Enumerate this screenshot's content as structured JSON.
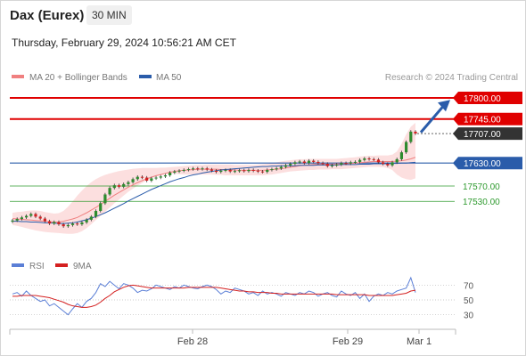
{
  "header": {
    "instrument": "Dax (Eurex)",
    "timeframe": "30 MIN",
    "datetime": "Thursday, February 29, 2024 10:56:21 AM CET"
  },
  "legend": {
    "ma20": "MA 20 + Bollinger Bands",
    "ma50": "MA 50",
    "credit": "Research © 2024 Trading Central",
    "rsi": "RSI",
    "ma9": "9MA"
  },
  "colors": {
    "resistance": "#e00000",
    "support_line": "#2a5caa",
    "support_minor": "#2e9a2e",
    "ma20": "#f08080",
    "ma50": "#2a5caa",
    "bollinger": "#fbd7d7",
    "bull": "#2e8b2e",
    "bear": "#d42020",
    "arrow": "#2a5caa"
  },
  "chart_data": {
    "type": "candlestick",
    "price_range": [
      17405,
      17835
    ],
    "levels": [
      {
        "value": 17800.0,
        "label": "17800.00",
        "kind": "resistance"
      },
      {
        "value": 17745.0,
        "label": "17745.00",
        "kind": "resistance"
      },
      {
        "value": 17707.0,
        "label": "17707.00",
        "kind": "current"
      },
      {
        "value": 17630.0,
        "label": "17630.00",
        "kind": "support"
      },
      {
        "value": 17570.0,
        "label": "17570.00",
        "kind": "support-minor"
      },
      {
        "value": 17530.0,
        "label": "17530.00",
        "kind": "support-minor"
      }
    ],
    "x_ticks": [
      "Feb 28",
      "Feb 29",
      "Mar 1"
    ],
    "close": [
      17480,
      17484,
      17488,
      17492,
      17497,
      17490,
      17485,
      17478,
      17472,
      17476,
      17470,
      17465,
      17468,
      17472,
      17470,
      17475,
      17482,
      17490,
      17505,
      17525,
      17548,
      17565,
      17572,
      17568,
      17575,
      17580,
      17588,
      17594,
      17592,
      17584,
      17590,
      17592,
      17595,
      17598,
      17605,
      17608,
      17610,
      17612,
      17614,
      17616,
      17614,
      17616,
      17613,
      17610,
      17607,
      17610,
      17612,
      17608,
      17609,
      17611,
      17609,
      17612,
      17610,
      17608,
      17607,
      17612,
      17614,
      17616,
      17620,
      17624,
      17628,
      17632,
      17634,
      17630,
      17636,
      17633,
      17630,
      17628,
      17622,
      17624,
      17626,
      17630,
      17629,
      17632,
      17633,
      17638,
      17642,
      17640,
      17639,
      17632,
      17628,
      17624,
      17632,
      17640,
      17658,
      17685,
      17712,
      17707
    ],
    "ma20": [
      17485,
      17484,
      17483,
      17482,
      17481,
      17480,
      17479,
      17478,
      17477,
      17476,
      17476,
      17478,
      17481,
      17484,
      17488,
      17494,
      17500,
      17507,
      17514,
      17522,
      17530,
      17538,
      17546,
      17553,
      17560,
      17567,
      17573,
      17579,
      17584,
      17589,
      17593,
      17597,
      17600,
      17603,
      17606,
      17608,
      17610,
      17611,
      17612,
      17613,
      17614,
      17614,
      17614,
      17614,
      17614,
      17613,
      17613,
      17612,
      17612,
      17611,
      17611,
      17611,
      17611,
      17611,
      17611,
      17612,
      17613,
      17614,
      17615,
      17617,
      17619,
      17621,
      17623,
      17624,
      17625,
      17626,
      17627,
      17627,
      17627,
      17627,
      17628,
      17628,
      17628,
      17629,
      17630,
      17631,
      17632,
      17633,
      17634,
      17634,
      17634,
      17634,
      17634,
      17635,
      17636,
      17638,
      17641,
      17645
    ],
    "bb_upper": [
      17500,
      17502,
      17503,
      17505,
      17506,
      17506,
      17505,
      17502,
      17500,
      17498,
      17499,
      17505,
      17516,
      17530,
      17545,
      17558,
      17570,
      17580,
      17588,
      17594,
      17599,
      17603,
      17606,
      17609,
      17611,
      17613,
      17615,
      17616,
      17617,
      17617,
      17617,
      17617,
      17618,
      17618,
      17619,
      17620,
      17621,
      17622,
      17623,
      17624,
      17625,
      17625,
      17626,
      17626,
      17626,
      17626,
      17626,
      17626,
      17625,
      17625,
      17625,
      17625,
      17625,
      17626,
      17627,
      17628,
      17630,
      17632,
      17634,
      17636,
      17637,
      17639,
      17640,
      17640,
      17641,
      17641,
      17641,
      17641,
      17641,
      17641,
      17641,
      17642,
      17643,
      17644,
      17645,
      17647,
      17648,
      17649,
      17649,
      17650,
      17650,
      17650,
      17652,
      17660,
      17680,
      17705,
      17725,
      17735
    ],
    "bb_lower": [
      17468,
      17466,
      17463,
      17460,
      17457,
      17454,
      17452,
      17450,
      17449,
      17448,
      17447,
      17446,
      17445,
      17445,
      17447,
      17452,
      17460,
      17470,
      17481,
      17492,
      17503,
      17514,
      17525,
      17535,
      17545,
      17555,
      17563,
      17571,
      17578,
      17585,
      17590,
      17595,
      17598,
      17601,
      17602,
      17602,
      17601,
      17600,
      17600,
      17600,
      17600,
      17600,
      17600,
      17600,
      17599,
      17599,
      17598,
      17598,
      17598,
      17598,
      17598,
      17598,
      17598,
      17598,
      17598,
      17599,
      17600,
      17602,
      17604,
      17606,
      17608,
      17609,
      17610,
      17611,
      17612,
      17612,
      17613,
      17613,
      17613,
      17614,
      17614,
      17614,
      17615,
      17616,
      17617,
      17618,
      17619,
      17620,
      17620,
      17620,
      17619,
      17617,
      17612,
      17600,
      17592,
      17588,
      17586,
      17590
    ],
    "ma50": [
      17478,
      17478,
      17477,
      17477,
      17476,
      17476,
      17475,
      17474,
      17474,
      17473,
      17472,
      17472,
      17473,
      17474,
      17476,
      17479,
      17482,
      17486,
      17490,
      17495,
      17500,
      17506,
      17512,
      17518,
      17524,
      17531,
      17537,
      17543,
      17549,
      17555,
      17561,
      17566,
      17571,
      17576,
      17581,
      17585,
      17589,
      17592,
      17596,
      17599,
      17601,
      17604,
      17606,
      17608,
      17610,
      17612,
      17613,
      17614,
      17615,
      17616,
      17617,
      17618,
      17619,
      17620,
      17621,
      17621,
      17622,
      17622,
      17623,
      17623,
      17623,
      17623,
      17624,
      17624,
      17624,
      17624,
      17625,
      17625,
      17625,
      17625,
      17625,
      17626,
      17626,
      17626,
      17626,
      17627,
      17627,
      17627,
      17628,
      17628,
      17628,
      17628,
      17629,
      17629,
      17630,
      17630,
      17631,
      17632
    ],
    "rsi_ticks": [
      70,
      50,
      30
    ],
    "rsi_range": [
      20,
      80
    ],
    "rsi": [
      58,
      60,
      55,
      62,
      56,
      52,
      48,
      50,
      42,
      45,
      40,
      35,
      30,
      38,
      45,
      40,
      48,
      52,
      60,
      72,
      68,
      75,
      70,
      65,
      72,
      70,
      66,
      60,
      63,
      62,
      65,
      70,
      68,
      66,
      64,
      68,
      66,
      70,
      68,
      66,
      65,
      68,
      70,
      68,
      64,
      58,
      62,
      60,
      66,
      64,
      62,
      58,
      60,
      56,
      62,
      58,
      60,
      58,
      55,
      60,
      58,
      56,
      60,
      58,
      62,
      60,
      55,
      58,
      60,
      56,
      54,
      62,
      58,
      56,
      60,
      52,
      58,
      48,
      55,
      58,
      56,
      60,
      58,
      62,
      64,
      66,
      80,
      60
    ],
    "rsi_ma": [
      55,
      55,
      56,
      56,
      56,
      56,
      55,
      54,
      53,
      51,
      49,
      47,
      44,
      42,
      41,
      40,
      40,
      41,
      43,
      47,
      52,
      56,
      61,
      64,
      67,
      69,
      70,
      69,
      68,
      67,
      66,
      66,
      66,
      66,
      66,
      66,
      66,
      66,
      67,
      67,
      67,
      67,
      67,
      67,
      67,
      66,
      65,
      64,
      63,
      62,
      62,
      61,
      61,
      60,
      60,
      60,
      59,
      59,
      58,
      58,
      58,
      58,
      58,
      58,
      58,
      58,
      58,
      58,
      58,
      58,
      57,
      57,
      57,
      57,
      57,
      57,
      57,
      56,
      56,
      56,
      56,
      56,
      56,
      57,
      58,
      59,
      62,
      63
    ]
  }
}
